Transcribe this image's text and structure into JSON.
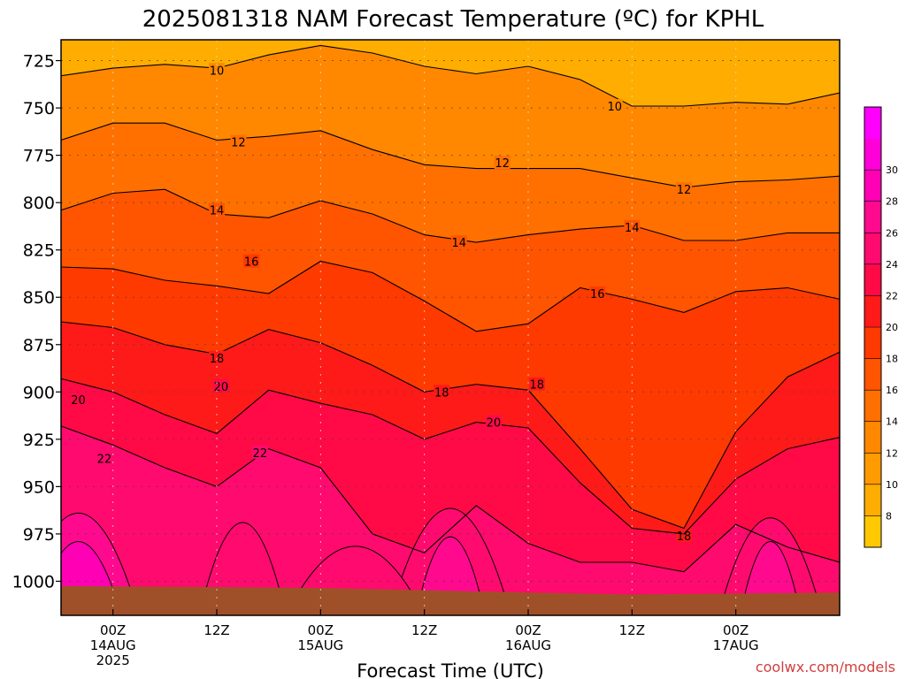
{
  "chart_data": {
    "type": "heatmap",
    "title": "2025081318 NAM Forecast Temperature (ºC) for KPHL",
    "xlabel": "Forecast Time (UTC)",
    "ylabel": "",
    "credit": "coolwx.com/models",
    "x_range_hours": [
      -6,
      84
    ],
    "x_ticks": [
      {
        "hour": 0,
        "line1": "00Z",
        "line2": "14AUG",
        "line3": "2025"
      },
      {
        "hour": 12,
        "line1": "12Z",
        "line2": "",
        "line3": ""
      },
      {
        "hour": 24,
        "line1": "00Z",
        "line2": "15AUG",
        "line3": ""
      },
      {
        "hour": 36,
        "line1": "12Z",
        "line2": "",
        "line3": ""
      },
      {
        "hour": 48,
        "line1": "00Z",
        "line2": "16AUG",
        "line3": ""
      },
      {
        "hour": 60,
        "line1": "12Z",
        "line2": "",
        "line3": ""
      },
      {
        "hour": 72,
        "line1": "00Z",
        "line2": "17AUG",
        "line3": ""
      }
    ],
    "y_range_hpa": [
      1018,
      714
    ],
    "y_ticks": [
      725,
      750,
      775,
      800,
      825,
      850,
      875,
      900,
      925,
      950,
      975,
      1000
    ],
    "grid": true,
    "colorbar": {
      "labels": [
        8,
        10,
        12,
        14,
        16,
        18,
        20,
        22,
        24,
        26,
        28,
        30
      ],
      "colors": [
        "#ffc800",
        "#ffad00",
        "#ff9a00",
        "#ff8800",
        "#ff7000",
        "#ff5500",
        "#ff3a00",
        "#ff1a1a",
        "#ff0a46",
        "#ff0a6e",
        "#ff0a8e",
        "#ff00b4",
        "#ff00d8",
        "#ff00ff"
      ]
    },
    "ground_color": "#a05028",
    "contours": [
      {
        "value": 10,
        "label_at": [
          [
            12.0,
            730
          ],
          [
            58.0,
            749
          ]
        ],
        "points": [
          [
            -6,
            733
          ],
          [
            0,
            729
          ],
          [
            6,
            727
          ],
          [
            12,
            729
          ],
          [
            18,
            722
          ],
          [
            24,
            717
          ],
          [
            30,
            721
          ],
          [
            36,
            728
          ],
          [
            42,
            732
          ],
          [
            48,
            728
          ],
          [
            54,
            735
          ],
          [
            60,
            749
          ],
          [
            66,
            749
          ],
          [
            72,
            747
          ],
          [
            78,
            748
          ],
          [
            84,
            742
          ]
        ]
      },
      {
        "value": 12,
        "label_at": [
          [
            14.5,
            768
          ],
          [
            45.0,
            779
          ],
          [
            66.0,
            793
          ]
        ],
        "points": [
          [
            -6,
            767
          ],
          [
            0,
            758
          ],
          [
            6,
            758
          ],
          [
            12,
            767
          ],
          [
            18,
            765
          ],
          [
            24,
            762
          ],
          [
            30,
            772
          ],
          [
            36,
            780
          ],
          [
            42,
            782
          ],
          [
            48,
            782
          ],
          [
            54,
            782
          ],
          [
            60,
            787
          ],
          [
            66,
            792
          ],
          [
            72,
            789
          ],
          [
            78,
            788
          ],
          [
            84,
            786
          ]
        ]
      },
      {
        "value": 14,
        "label_at": [
          [
            12.0,
            804
          ],
          [
            40.0,
            821
          ],
          [
            60.0,
            813
          ]
        ],
        "points": [
          [
            -6,
            804
          ],
          [
            0,
            795
          ],
          [
            6,
            793
          ],
          [
            12,
            806
          ],
          [
            18,
            808
          ],
          [
            24,
            799
          ],
          [
            30,
            806
          ],
          [
            36,
            817
          ],
          [
            42,
            821
          ],
          [
            48,
            817
          ],
          [
            54,
            814
          ],
          [
            60,
            812
          ],
          [
            66,
            820
          ],
          [
            72,
            820
          ],
          [
            78,
            816
          ],
          [
            84,
            816
          ]
        ]
      },
      {
        "value": 16,
        "label_at": [
          [
            16.0,
            831
          ],
          [
            56.0,
            848
          ]
        ],
        "points": [
          [
            -6,
            834
          ],
          [
            0,
            835
          ],
          [
            6,
            841
          ],
          [
            12,
            844
          ],
          [
            18,
            848
          ],
          [
            24,
            831
          ],
          [
            30,
            837
          ],
          [
            36,
            852
          ],
          [
            42,
            868
          ],
          [
            48,
            864
          ],
          [
            54,
            845
          ],
          [
            60,
            851
          ],
          [
            66,
            858
          ],
          [
            72,
            847
          ],
          [
            78,
            845
          ],
          [
            84,
            851
          ]
        ]
      },
      {
        "value": 18,
        "label_at": [
          [
            12.0,
            882
          ],
          [
            38.0,
            900
          ],
          [
            49.0,
            896
          ],
          [
            66.0,
            976
          ]
        ],
        "points": [
          [
            -6,
            863
          ],
          [
            0,
            866
          ],
          [
            6,
            875
          ],
          [
            12,
            880
          ],
          [
            18,
            867
          ],
          [
            24,
            874
          ],
          [
            30,
            886
          ],
          [
            36,
            900
          ],
          [
            42,
            896
          ],
          [
            48,
            899
          ],
          [
            54,
            930
          ],
          [
            60,
            962
          ],
          [
            66,
            972
          ],
          [
            72,
            921
          ],
          [
            78,
            892
          ],
          [
            84,
            879
          ]
        ]
      },
      {
        "value": 20,
        "label_at": [
          [
            -4.0,
            904
          ],
          [
            12.5,
            897
          ],
          [
            44.0,
            916
          ]
        ],
        "points": [
          [
            -6,
            893
          ],
          [
            0,
            900
          ],
          [
            6,
            912
          ],
          [
            12,
            922
          ],
          [
            18,
            899
          ],
          [
            24,
            906
          ],
          [
            30,
            912
          ],
          [
            36,
            925
          ],
          [
            42,
            916
          ],
          [
            48,
            919
          ],
          [
            54,
            948
          ],
          [
            60,
            972
          ],
          [
            66,
            975
          ],
          [
            72,
            946
          ],
          [
            78,
            930
          ],
          [
            84,
            924
          ]
        ]
      },
      {
        "value": 22,
        "label_at": [
          [
            -1.0,
            935
          ],
          [
            17.0,
            932
          ]
        ],
        "points": [
          [
            -6,
            918
          ],
          [
            0,
            928
          ],
          [
            6,
            940
          ],
          [
            12,
            950
          ],
          [
            18,
            930
          ],
          [
            24,
            940
          ],
          [
            30,
            975
          ],
          [
            36,
            985
          ],
          [
            42,
            960
          ],
          [
            48,
            980
          ],
          [
            54,
            990
          ],
          [
            60,
            990
          ],
          [
            66,
            995
          ],
          [
            72,
            970
          ],
          [
            78,
            982
          ],
          [
            84,
            990
          ]
        ]
      }
    ]
  }
}
